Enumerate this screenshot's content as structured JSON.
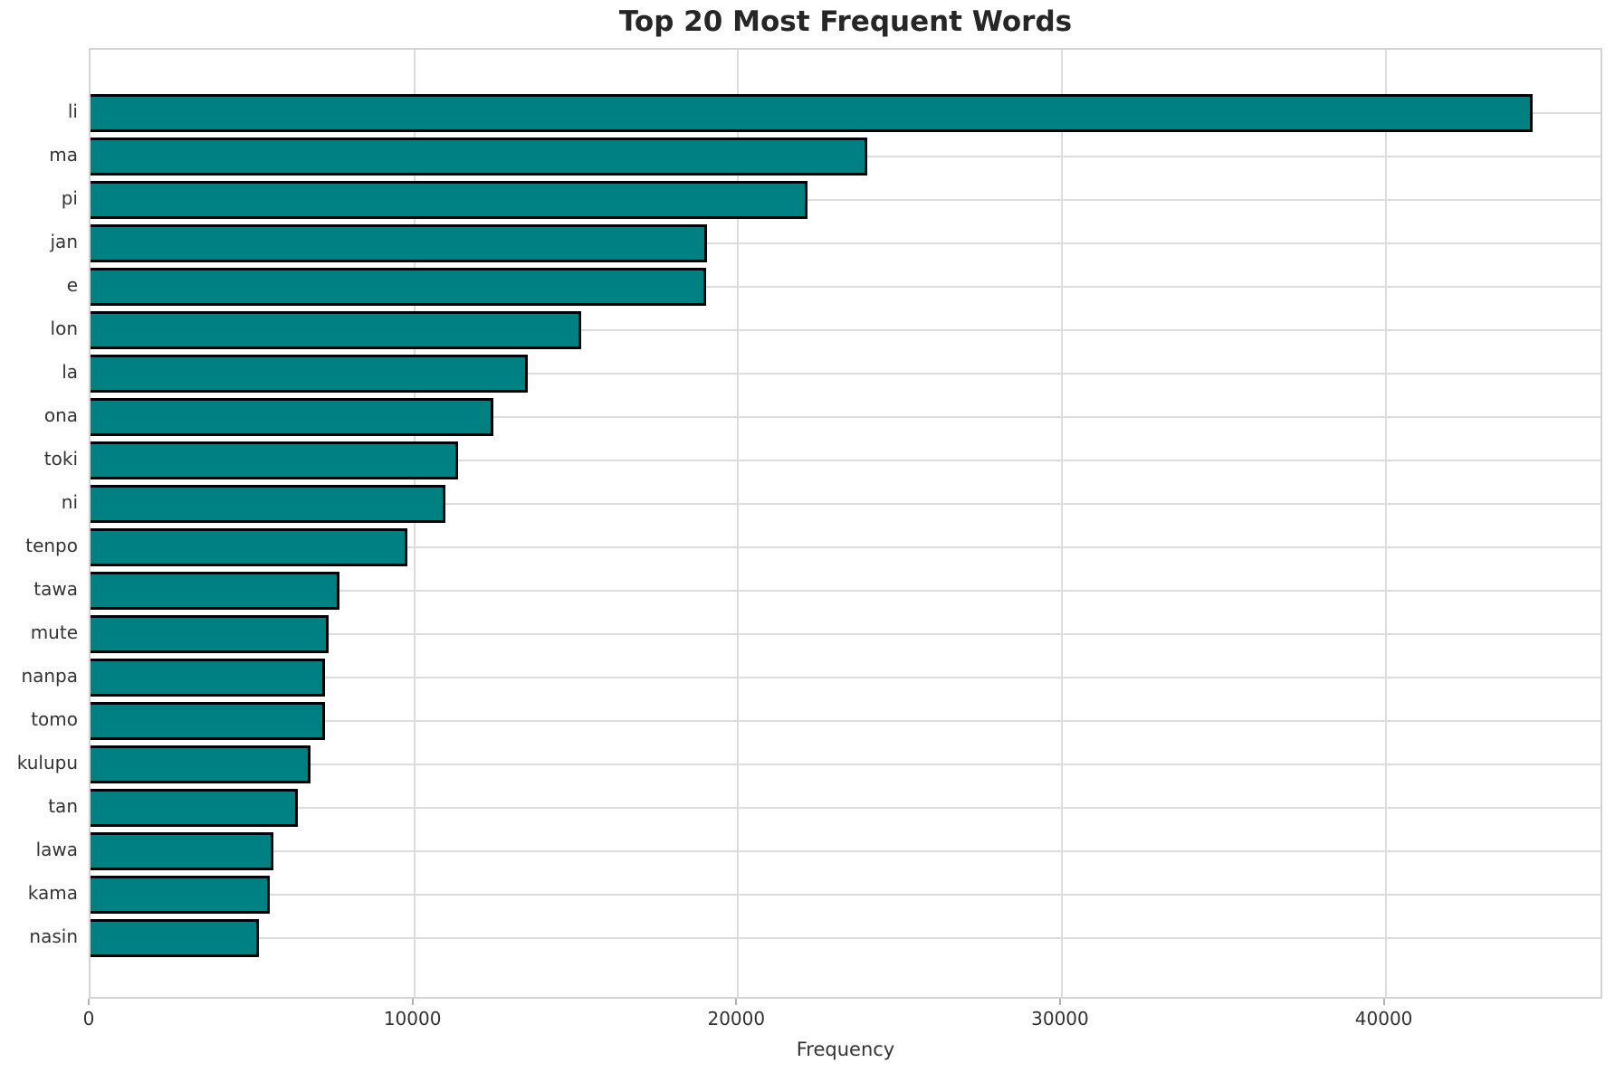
{
  "chart_data": {
    "type": "bar",
    "orientation": "horizontal",
    "title": "Top 20 Most Frequent Words",
    "xlabel": "Frequency",
    "ylabel": "",
    "categories": [
      "li",
      "ma",
      "pi",
      "jan",
      "e",
      "lon",
      "la",
      "ona",
      "toki",
      "ni",
      "tenpo",
      "tawa",
      "mute",
      "nanpa",
      "tomo",
      "kulupu",
      "tan",
      "lawa",
      "kama",
      "nasin"
    ],
    "values": [
      44550,
      24000,
      22150,
      19050,
      19000,
      15150,
      13500,
      12450,
      11350,
      10950,
      9800,
      7700,
      7350,
      7250,
      7230,
      6800,
      6400,
      5650,
      5550,
      5200
    ],
    "xlim": [
      0,
      46750
    ],
    "xticks": [
      0,
      10000,
      20000,
      30000,
      40000
    ],
    "xtick_labels": [
      "0",
      "10000",
      "20000",
      "30000",
      "40000"
    ],
    "grid": true,
    "legend": false,
    "bar_color": "#008080",
    "bar_edge_color": "#000000",
    "grid_color": "#dcdcdc",
    "spine_color": "#d4d4d4",
    "title_color": "#262626",
    "tick_color": "#333333"
  }
}
